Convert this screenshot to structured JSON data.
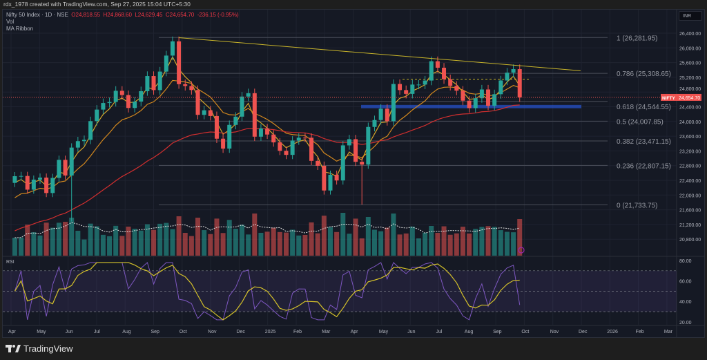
{
  "header": {
    "attribution": "rdx_1978 created with TradingView.com, Sep 27, 2025 15:04 UTC+5:30"
  },
  "legend": {
    "symbol": "Nifty 50 Index · 1D · NSE",
    "open": "O24,818.55",
    "high": "H24,868.60",
    "low": "L24,629.45",
    "close": "C24,654.70",
    "change": "-236.15 (-0.95%)",
    "vol": "Vol",
    "ma": "MA Ribbon",
    "rsi": "RSI"
  },
  "currency": "INR",
  "price_tag": {
    "symbol": "NIFTY",
    "value": "24,654.70"
  },
  "brand": "TradingView",
  "colors": {
    "up": "#26a69a",
    "down": "#ef5350",
    "trendline": "#c9b52a",
    "zone": "#2962ff",
    "ma_fast": "#d4a62a",
    "ma_mid": "#d4891e",
    "ma_slow": "#d32f2f",
    "rsi": "#7e57c2",
    "rsi_ma": "#d4c12a"
  },
  "chart_data": {
    "type": "candlestick",
    "first_date": "2024-04-05",
    "last_date": "2025-09-26",
    "closes": [
      22513,
      22519,
      22147,
      22420,
      22475,
      22055,
      22466,
      22957,
      22531,
      23290,
      23466,
      23501,
      24010,
      24323,
      24502,
      24530,
      24834,
      24718,
      24367,
      24541,
      24823,
      25235,
      24852,
      25356,
      25791,
      26178,
      25014,
      24964,
      24854,
      24180,
      24304,
      24148,
      23532,
      23263,
      23907,
      24131,
      24677,
      24768,
      23587,
      23813,
      23645,
      23432,
      23203,
      23092,
      23482,
      23560,
      23559,
      22929,
      22796,
      22124,
      22552,
      22397,
      23350,
      23519,
      22904,
      22829,
      23851,
      24039,
      24347,
      24008,
      25019,
      24853,
      24750,
      25003,
      25003,
      25112,
      25637,
      25461,
      25149,
      24968,
      24837,
      24565,
      24363,
      24631,
      24870,
      24426,
      24741,
      25114,
      25327,
      25423,
      24654.7
    ],
    "notable_lows": {
      "9": 21281,
      "55": 21743
    },
    "y_axis": {
      "ticks": [
        "26,400.00",
        "26,000.00",
        "25,600.00",
        "25,200.00",
        "24,800.00",
        "24,400.00",
        "24,000.00",
        "23,600.00",
        "23,200.00",
        "22,800.00",
        "22,400.00",
        "22,000.00",
        "21,600.00",
        "21,200.00",
        "20,800.00"
      ],
      "range": [
        20500,
        26700
      ]
    },
    "rsi_axis": {
      "ticks": [
        "80.00",
        "60.00",
        "40.00",
        "20.00"
      ],
      "bands": [
        70,
        30
      ]
    },
    "x_ticks": [
      "Apr",
      "May",
      "Jun",
      "Jul",
      "Aug",
      "Sep",
      "Oct",
      "Nov",
      "Dec",
      "2025",
      "Feb",
      "Mar",
      "Apr",
      "May",
      "Jun",
      "Jul",
      "Aug",
      "Sep",
      "Oct",
      "Nov",
      "Dec",
      "2026",
      "Feb",
      "Mar"
    ],
    "fibonacci": [
      {
        "label": "1 (26,281.95)",
        "price": 26281.95
      },
      {
        "label": "0.786 (25,308.65)",
        "price": 25308.65
      },
      {
        "label": "0.618 (24,544.55)",
        "price": 24544.55
      },
      {
        "label": "0.5 (24,007.85)",
        "price": 24007.85
      },
      {
        "label": "0.382 (23,471.15)",
        "price": 23471.15
      },
      {
        "label": "0.236 (22,807.15)",
        "price": 22807.15
      },
      {
        "label": "0 (21,733.75)",
        "price": 21733.75
      }
    ],
    "trendline": {
      "from": {
        "date": "2024-09-27",
        "price": 26277
      },
      "to": {
        "date": "2025-11-30",
        "price": 25380
      }
    },
    "support_zone": [
      24360,
      24450
    ],
    "resistance_dashed": 25150
  }
}
